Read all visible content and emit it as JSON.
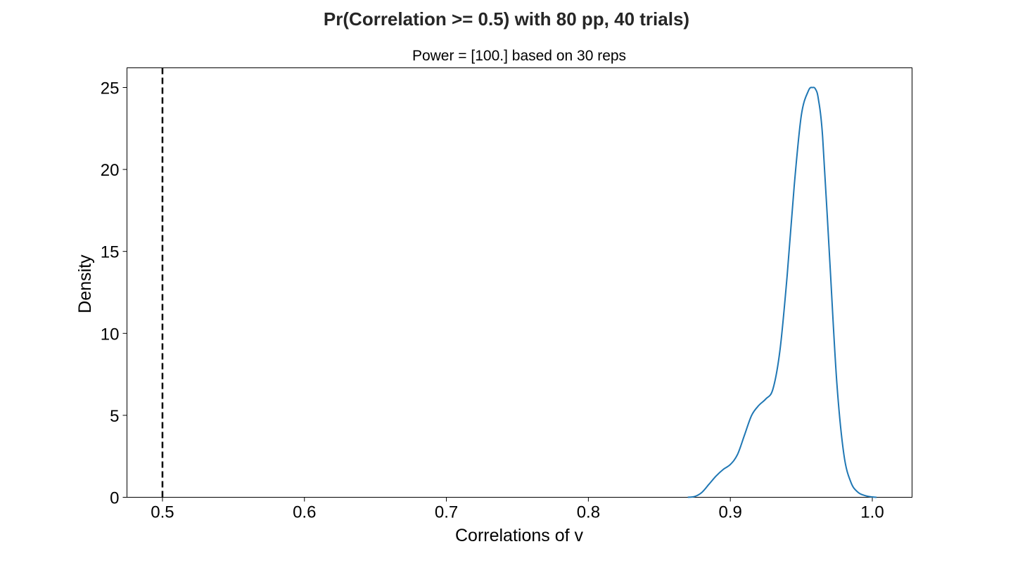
{
  "figure": {
    "suptitle": "Pr(Correlation >= 0.5) with 80 pp, 40 trials)"
  },
  "chart_data": {
    "type": "line",
    "title": "Power = [100.] based on 30 reps",
    "xlabel": "Correlations of v",
    "ylabel": "Density",
    "xlim": [
      0.475,
      1.028
    ],
    "ylim": [
      0,
      26.2
    ],
    "grid": false,
    "x_ticks": [
      0.5,
      0.6,
      0.7,
      0.8,
      0.9,
      1.0
    ],
    "x_tick_labels": [
      "0.5",
      "0.6",
      "0.7",
      "0.8",
      "0.9",
      "1.0"
    ],
    "y_ticks": [
      0,
      5,
      10,
      15,
      20,
      25
    ],
    "y_tick_labels": [
      "0",
      "5",
      "10",
      "15",
      "20",
      "25"
    ],
    "reference_line": {
      "x": 0.5,
      "style": "dashed",
      "color": "#000000"
    },
    "series": [
      {
        "color": "#1f77b4",
        "x": [
          0.87,
          0.875,
          0.88,
          0.885,
          0.89,
          0.895,
          0.9,
          0.905,
          0.91,
          0.915,
          0.92,
          0.925,
          0.93,
          0.935,
          0.94,
          0.945,
          0.95,
          0.955,
          0.958,
          0.96,
          0.962,
          0.965,
          0.97,
          0.975,
          0.98,
          0.985,
          0.99,
          0.995,
          1.0,
          1.003
        ],
        "y": [
          0.0,
          0.05,
          0.3,
          0.8,
          1.3,
          1.7,
          2.0,
          2.6,
          3.8,
          5.0,
          5.6,
          6.0,
          6.6,
          9.0,
          13.5,
          19.0,
          23.3,
          24.8,
          25.0,
          24.9,
          24.3,
          22.0,
          14.5,
          7.0,
          2.6,
          0.9,
          0.3,
          0.1,
          0.02,
          0.0
        ]
      }
    ]
  }
}
